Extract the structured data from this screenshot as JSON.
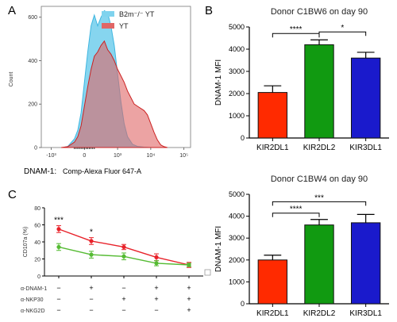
{
  "chart_data": [
    {
      "panel": "A",
      "type": "area",
      "ylabel": "Count",
      "xlabel_prefix": "DNAM-1:",
      "xlabel": "Comp-Alexa Fluor 647-A",
      "yticks": [
        "0",
        "200",
        "400",
        "600"
      ],
      "ylim": [
        0,
        650
      ],
      "xticks": [
        "-10³",
        "0",
        "10³",
        "10⁴",
        "10⁵"
      ],
      "xtick_pos": [
        -1,
        0,
        1,
        2,
        3
      ],
      "xlim": [
        -1.3,
        3.2
      ],
      "series": [
        {
          "name": "B2m⁻/⁻ YT",
          "color": "#7fd3ee",
          "x": [
            -0.65,
            -0.5,
            -0.3,
            -0.2,
            -0.1,
            0,
            0.1,
            0.2,
            0.3,
            0.4,
            0.5,
            0.6,
            0.7,
            0.8,
            0.9,
            1.0,
            1.1,
            1.2,
            1.3,
            1.45,
            1.6,
            1.8,
            2.0
          ],
          "y": [
            0,
            5,
            40,
            80,
            160,
            300,
            440,
            560,
            610,
            560,
            600,
            630,
            620,
            560,
            470,
            340,
            210,
            110,
            50,
            15,
            5,
            2,
            0
          ]
        },
        {
          "name": "YT",
          "color": "#e06666",
          "x": [
            -0.7,
            -0.5,
            -0.3,
            -0.2,
            -0.1,
            0,
            0.1,
            0.2,
            0.3,
            0.4,
            0.5,
            0.6,
            0.7,
            0.8,
            0.9,
            1.0,
            1.1,
            1.2,
            1.3,
            1.4,
            1.5,
            1.6,
            1.7,
            1.8,
            1.9,
            2.0,
            2.1,
            2.2,
            2.3,
            2.4,
            2.5
          ],
          "y": [
            0,
            4,
            25,
            50,
            100,
            190,
            280,
            360,
            420,
            440,
            470,
            490,
            450,
            430,
            400,
            360,
            330,
            300,
            260,
            230,
            200,
            190,
            180,
            170,
            150,
            110,
            70,
            35,
            12,
            4,
            0
          ]
        }
      ]
    },
    {
      "panel": "B",
      "type": "bar",
      "title": "Donor C1BW6 on day 90",
      "ylabel": "DNAM-1 MFI",
      "categories": [
        "KIR2DL1",
        "KIR2DL2",
        "KIR3DL1"
      ],
      "values": [
        2050,
        4200,
        3600
      ],
      "errors": [
        300,
        220,
        260
      ],
      "colors": [
        "#ff2a00",
        "#119a11",
        "#1a1acc"
      ],
      "ylim": [
        0,
        5000
      ],
      "yticks": [
        "0",
        "1000",
        "2000",
        "3000",
        "4000",
        "5000"
      ],
      "significance": [
        {
          "from": 0,
          "to": 1,
          "label": "****"
        },
        {
          "from": 1,
          "to": 2,
          "label": "*"
        }
      ]
    },
    {
      "panel": "B",
      "type": "bar",
      "title": "Donor C1BW4 on day 90",
      "ylabel": "DNAM-1 MFI",
      "categories": [
        "KIR2DL1",
        "KIR2DL2",
        "KIR3DL1"
      ],
      "values": [
        2000,
        3600,
        3700
      ],
      "errors": [
        220,
        250,
        380
      ],
      "colors": [
        "#ff2a00",
        "#119a11",
        "#1a1acc"
      ],
      "ylim": [
        0,
        5000
      ],
      "yticks": [
        "0",
        "1000",
        "2000",
        "3000",
        "4000",
        "5000"
      ],
      "significance": [
        {
          "from": 0,
          "to": 1,
          "label": "****"
        },
        {
          "from": 0,
          "to": 2,
          "label": "***"
        }
      ]
    },
    {
      "panel": "C",
      "type": "line",
      "ylabel": "CD107a (%)",
      "yticks": [
        "0",
        "20",
        "40",
        "60",
        "80"
      ],
      "ylim": [
        0,
        80
      ],
      "x": [
        1,
        2,
        3,
        4,
        5
      ],
      "series": [
        {
          "color": "#e8222a",
          "values": [
            55,
            41,
            34,
            22,
            13
          ],
          "errors": [
            4,
            4,
            3,
            4,
            3
          ]
        },
        {
          "color": "#55bb33",
          "values": [
            34,
            25,
            23,
            15,
            13
          ],
          "errors": [
            4,
            4,
            4,
            3,
            2
          ]
        }
      ],
      "point_labels": [
        {
          "index": 0,
          "label": "***"
        },
        {
          "index": 1,
          "label": "*"
        }
      ],
      "conditions": [
        {
          "label": "α-DNAM-1",
          "marks": [
            "−",
            "+",
            "−",
            "+",
            "+"
          ]
        },
        {
          "label": "α-NKP30",
          "marks": [
            "−",
            "−",
            "+",
            "+",
            "+"
          ]
        },
        {
          "label": "α-NKG2D",
          "marks": [
            "−",
            "−",
            "−",
            "−",
            "+"
          ]
        }
      ]
    }
  ],
  "panels": {
    "a": "A",
    "b": "B",
    "c": "C"
  }
}
